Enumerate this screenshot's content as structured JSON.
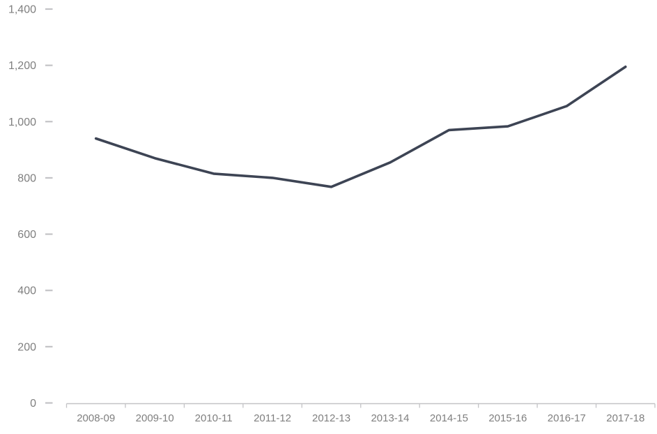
{
  "chart_data": {
    "type": "line",
    "title": "",
    "xlabel": "",
    "ylabel": "",
    "categories": [
      "2008-09",
      "2009-10",
      "2010-11",
      "2011-12",
      "2012-13",
      "2013-14",
      "2014-15",
      "2015-16",
      "2016-17",
      "2017-18"
    ],
    "values": [
      940,
      870,
      815,
      800,
      768,
      855,
      970,
      983,
      1055,
      1195
    ],
    "ylim": [
      0,
      1400
    ],
    "y_ticks": [
      0,
      200,
      400,
      600,
      800,
      1000,
      1200,
      1400
    ],
    "y_tick_labels": [
      "0",
      "200",
      "400",
      "600",
      "800",
      "1,000",
      "1,200",
      "1,400"
    ],
    "grid": false,
    "legend": "none",
    "colors": {
      "line": "#3d4454",
      "axis": "#c3c3c6",
      "labels": "#7f7f7f"
    }
  }
}
